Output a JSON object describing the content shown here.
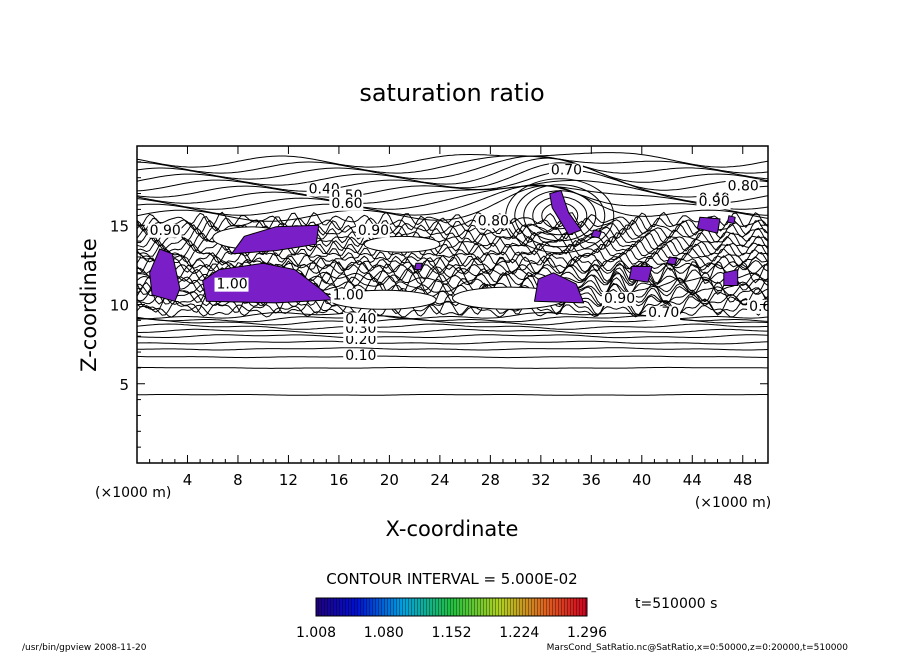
{
  "chart_data": {
    "type": "contour",
    "title": "saturation ratio",
    "xlabel": "X-coordinate",
    "ylabel": "Z-coordinate",
    "x_unit": "(×1000 m)",
    "y_unit": "(×1000 m)",
    "xlim": [
      0,
      50
    ],
    "ylim": [
      0,
      20
    ],
    "x_ticks": [
      "4",
      "8",
      "12",
      "16",
      "20",
      "24",
      "28",
      "32",
      "36",
      "40",
      "44",
      "48"
    ],
    "y_ticks": [
      "5",
      "10",
      "15"
    ],
    "x_tick_values": [
      4,
      8,
      12,
      16,
      20,
      24,
      28,
      32,
      36,
      40,
      44,
      48
    ],
    "y_tick_values": [
      5,
      10,
      15
    ],
    "contour_labels": [
      "0.10",
      "0.20",
      "0.30",
      "0.40",
      "0.50",
      "0.60",
      "0.70",
      "0.80",
      "0.90",
      "1.00"
    ],
    "contour_interval_text": "CONTOUR INTERVAL = 5.000E-02",
    "colorbar": {
      "labels": [
        "1.008",
        "1.080",
        "1.152",
        "1.224",
        "1.296"
      ],
      "min": 1.008,
      "max": 1.296,
      "shaded_color": "#7a1fc8"
    },
    "time_label": "t=510000 s",
    "footer_left": "/usr/bin/gpview   2008-11-20",
    "footer_right": "MarsCond_SatRatio.nc@SatRatio,x=0:50000,z=0:20000,t=510000"
  }
}
